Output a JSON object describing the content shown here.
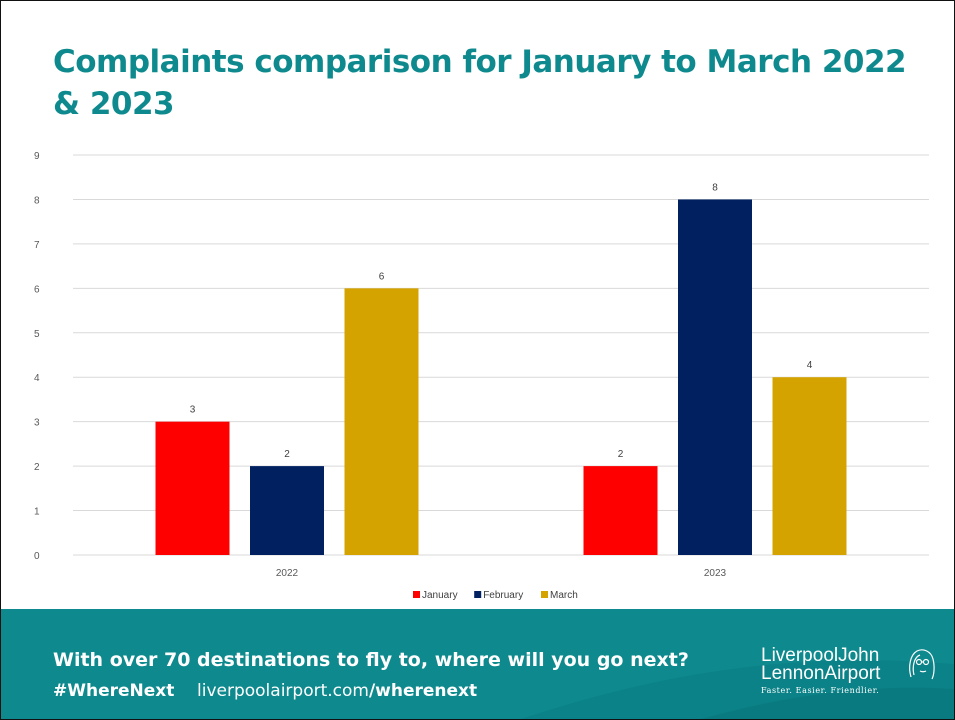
{
  "slide": {
    "title": "Complaints comparison for January to March 2022 & 2023"
  },
  "chart_data": {
    "type": "bar",
    "categories": [
      "2022",
      "2023"
    ],
    "series": [
      {
        "name": "January",
        "values": [
          3,
          2
        ],
        "color": "#ff0000"
      },
      {
        "name": "February",
        "values": [
          2,
          8
        ],
        "color": "#002060"
      },
      {
        "name": "March",
        "values": [
          6,
          4
        ],
        "color": "#d4a300"
      }
    ],
    "ylim": [
      0,
      9
    ],
    "yticks": [
      "0",
      "1",
      "2",
      "3",
      "4",
      "5",
      "6",
      "7",
      "8",
      "9"
    ],
    "grid": true,
    "legend": "bottom",
    "data_labels": true,
    "xlabel": "",
    "ylabel": ""
  },
  "footer": {
    "promo": "With over 70 destinations to fly to, where will you go next?",
    "hashtag": "#WhereNext",
    "url_prefix": "liverpoolairport.com",
    "url_path": "/wherenext",
    "logo_line1": "LiverpoolJohn",
    "logo_line2": "LennonAirport",
    "logo_tagline": "Faster. Easier. Friendlier.",
    "background_color": "#0e8a8e"
  }
}
